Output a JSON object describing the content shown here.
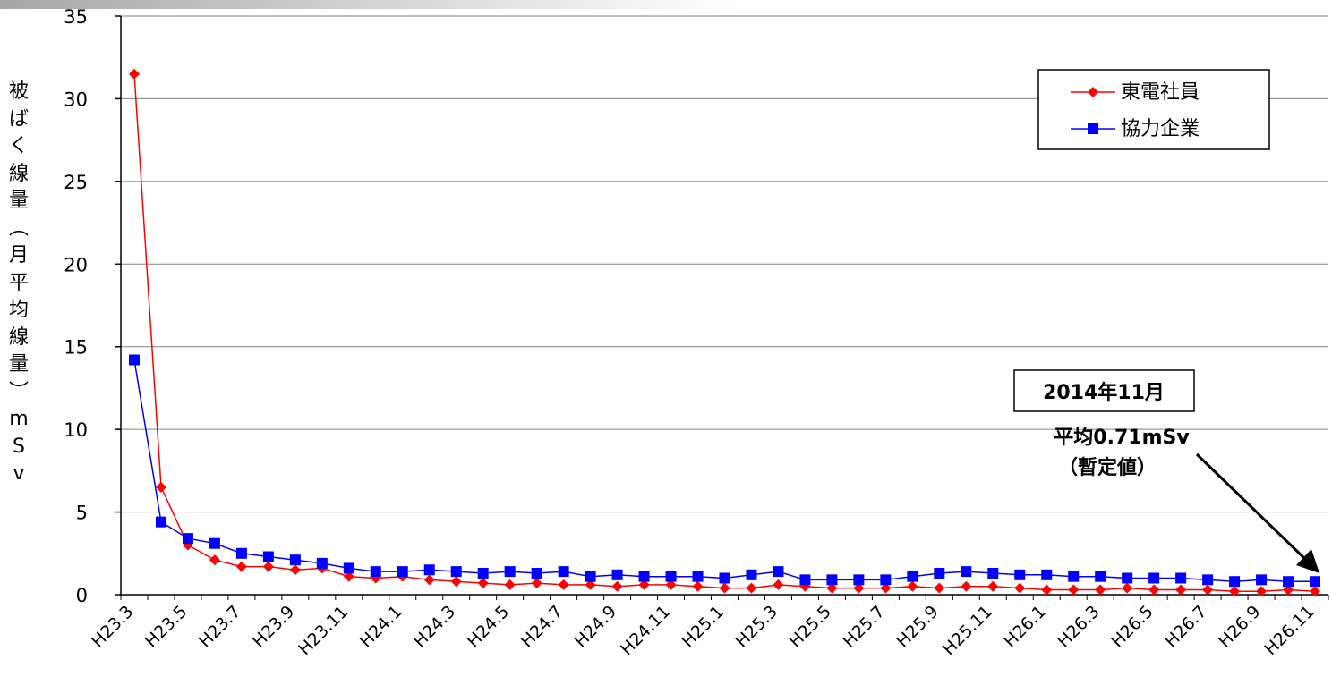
{
  "chart_data": {
    "type": "line",
    "ylabel": "被ばく線量（月平均線量）mSv",
    "ylim": [
      0,
      35
    ],
    "yticks": [
      0,
      5,
      10,
      15,
      20,
      25,
      30,
      35
    ],
    "grid": true,
    "legend_position": "top-right",
    "x": [
      "H23.3",
      "H23.4",
      "H23.5",
      "H23.6",
      "H23.7",
      "H23.8",
      "H23.9",
      "H23.10",
      "H23.11",
      "H23.12",
      "H24.1",
      "H24.2",
      "H24.3",
      "H24.4",
      "H24.5",
      "H24.6",
      "H24.7",
      "H24.8",
      "H24.9",
      "H24.10",
      "H24.11",
      "H24.12",
      "H25.1",
      "H25.2",
      "H25.3",
      "H25.4",
      "H25.5",
      "H25.6",
      "H25.7",
      "H25.8",
      "H25.9",
      "H25.10",
      "H25.11",
      "H25.12",
      "H26.1",
      "H26.2",
      "H26.3",
      "H26.4",
      "H26.5",
      "H26.6",
      "H26.7",
      "H26.8",
      "H26.9",
      "H26.10",
      "H26.11"
    ],
    "xtick_labels": [
      "H23.3",
      "H23.5",
      "H23.7",
      "H23.9",
      "H23.11",
      "H24.1",
      "H24.3",
      "H24.5",
      "H24.7",
      "H24.9",
      "H24.11",
      "H25.1",
      "H25.3",
      "H25.5",
      "H25.7",
      "H25.9",
      "H25.11",
      "H26.1",
      "H26.3",
      "H26.5",
      "H26.7",
      "H26.9",
      "H26.11"
    ],
    "series": [
      {
        "name": "東電社員",
        "color": "#ff0000",
        "marker": "diamond",
        "values": [
          31.5,
          6.5,
          3.0,
          2.1,
          1.7,
          1.7,
          1.5,
          1.6,
          1.1,
          1.0,
          1.1,
          0.9,
          0.8,
          0.7,
          0.6,
          0.7,
          0.6,
          0.6,
          0.5,
          0.6,
          0.6,
          0.5,
          0.4,
          0.4,
          0.6,
          0.5,
          0.4,
          0.4,
          0.4,
          0.5,
          0.4,
          0.5,
          0.5,
          0.4,
          0.3,
          0.3,
          0.3,
          0.4,
          0.3,
          0.3,
          0.3,
          0.2,
          0.2,
          0.3,
          0.2
        ]
      },
      {
        "name": "協力企業",
        "color": "#0000ff",
        "marker": "square",
        "values": [
          14.2,
          4.4,
          3.4,
          3.1,
          2.5,
          2.3,
          2.1,
          1.9,
          1.6,
          1.4,
          1.4,
          1.5,
          1.4,
          1.3,
          1.4,
          1.3,
          1.4,
          1.1,
          1.2,
          1.1,
          1.1,
          1.1,
          1.0,
          1.2,
          1.4,
          0.9,
          0.9,
          0.9,
          0.9,
          1.1,
          1.3,
          1.4,
          1.3,
          1.2,
          1.2,
          1.1,
          1.1,
          1.0,
          1.0,
          1.0,
          0.9,
          0.8,
          0.9,
          0.8,
          0.8
        ]
      }
    ],
    "annotations": {
      "boxed_label": "2014年11月",
      "text_line1": "平均0.71mSv",
      "text_line2": "（暫定値）"
    }
  },
  "colors": {
    "axis": "#000000",
    "grid": "#808080",
    "top_bar_start": "#a6a6a6",
    "top_bar_end": "#ffffff"
  }
}
